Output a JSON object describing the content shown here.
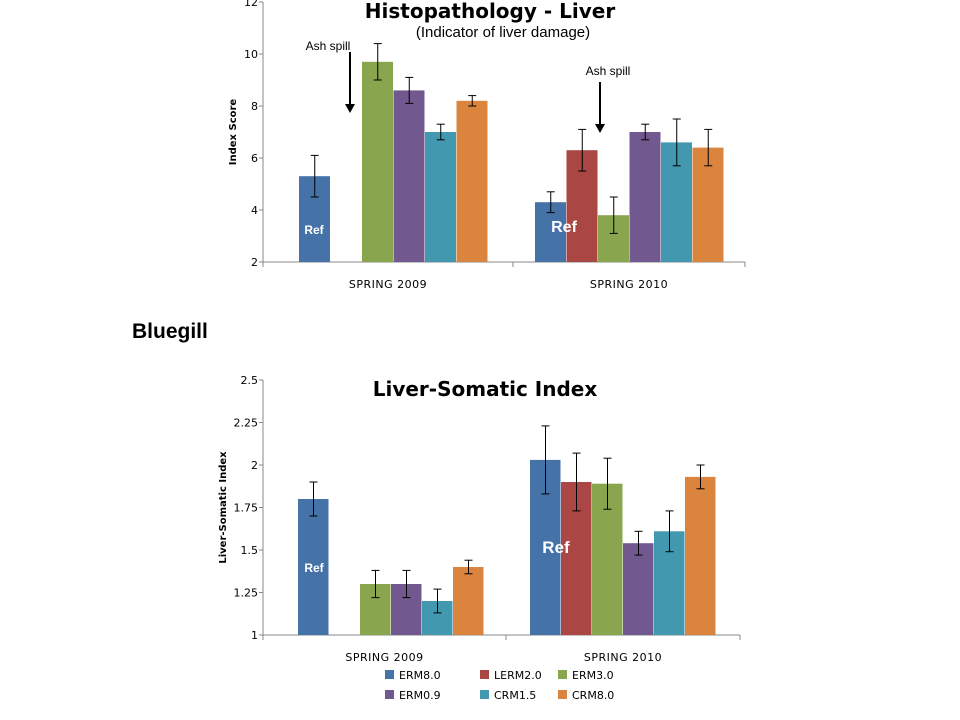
{
  "species_label": "Bluegill",
  "legend": [
    {
      "name": "ERM8.0",
      "color": "#4572A7"
    },
    {
      "name": "LERM2.0",
      "color": "#AA4643"
    },
    {
      "name": "ERM3.0",
      "color": "#89A54E"
    },
    {
      "name": "ERM0.9",
      "color": "#71588F"
    },
    {
      "name": "CRM1.5",
      "color": "#4198AF"
    },
    {
      "name": "CRM8.0",
      "color": "#DB843D"
    }
  ],
  "chart_data": [
    {
      "type": "bar",
      "title": "Histopathology - Liver",
      "subtitle": "(Indicator of liver damage)",
      "ylabel": "Index Score",
      "xlabel": "",
      "ylim": [
        2,
        12
      ],
      "yticks": [
        "2",
        "4",
        "6",
        "8",
        "10",
        "12"
      ],
      "categories": [
        "SPRING 2009",
        "SPRING 2010"
      ],
      "grid": false,
      "series": [
        {
          "name": "ERM8.0",
          "values": [
            5.3,
            4.3
          ],
          "errors": [
            0.8,
            0.4
          ]
        },
        {
          "name": "LERM2.0",
          "values": [
            null,
            6.3
          ],
          "errors": [
            null,
            0.8
          ]
        },
        {
          "name": "ERM3.0",
          "values": [
            9.7,
            3.8
          ],
          "errors": [
            0.7,
            0.7
          ]
        },
        {
          "name": "ERM0.9",
          "values": [
            8.6,
            7.0
          ],
          "errors": [
            0.5,
            0.3
          ]
        },
        {
          "name": "CRM1.5",
          "values": [
            7.0,
            6.6
          ],
          "errors": [
            0.3,
            0.9
          ]
        },
        {
          "name": "CRM8.0",
          "values": [
            8.2,
            6.4
          ],
          "errors": [
            0.2,
            0.7
          ]
        }
      ],
      "ref_labels": [
        "Ref",
        "Ref"
      ],
      "annotations": [
        "Ash spill",
        "Ash spill"
      ]
    },
    {
      "type": "bar",
      "title": "Liver-Somatic Index",
      "ylabel": "Liver-Somatic Index",
      "xlabel": "",
      "ylim": [
        1,
        2.5
      ],
      "yticks": [
        "1",
        "1.25",
        "1.5",
        "1.75",
        "2",
        "2.25",
        "2.5"
      ],
      "categories": [
        "SPRING 2009",
        "SPRING 2010"
      ],
      "grid": false,
      "legend_position": "bottom",
      "series": [
        {
          "name": "ERM8.0",
          "values": [
            1.8,
            2.03
          ],
          "errors": [
            0.1,
            0.2
          ]
        },
        {
          "name": "LERM2.0",
          "values": [
            null,
            1.9
          ],
          "errors": [
            null,
            0.17
          ]
        },
        {
          "name": "ERM3.0",
          "values": [
            1.3,
            1.89
          ],
          "errors": [
            0.08,
            0.15
          ]
        },
        {
          "name": "ERM0.9",
          "values": [
            1.3,
            1.54
          ],
          "errors": [
            0.08,
            0.07
          ]
        },
        {
          "name": "CRM1.5",
          "values": [
            1.2,
            1.61
          ],
          "errors": [
            0.07,
            0.12
          ]
        },
        {
          "name": "CRM8.0",
          "values": [
            1.4,
            1.93
          ],
          "errors": [
            0.04,
            0.07
          ]
        }
      ],
      "ref_labels": [
        "Ref",
        "Ref"
      ]
    }
  ]
}
